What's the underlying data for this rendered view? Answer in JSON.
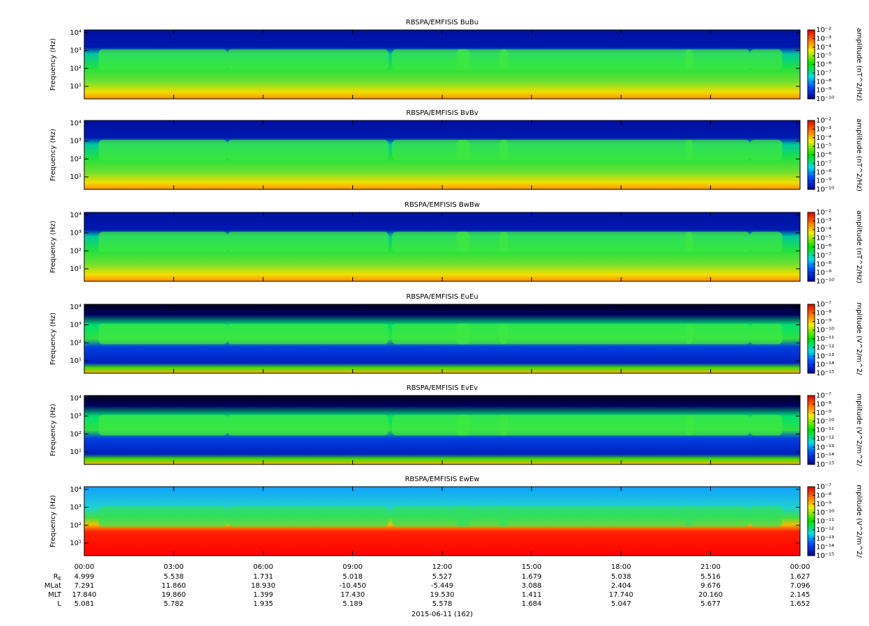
{
  "chart_data": [
    {
      "type": "spectrogram",
      "title": "RBSPA/EMFISIS  BuBu",
      "ylabel": "Frequency (Hz)",
      "log_y": true,
      "ylim": [
        2,
        14000
      ],
      "yticks": [
        {
          "value": 10,
          "label": "10¹"
        },
        {
          "value": 100,
          "label": "10²"
        },
        {
          "value": 1000,
          "label": "10³"
        },
        {
          "value": 10000,
          "label": "10⁴"
        }
      ],
      "colorbar": {
        "label": "amplitude (nT^2/Hz)",
        "lim": [
          1e-10,
          0.01
        ],
        "ticks": [
          {
            "value": 0.01,
            "label": "10⁻²"
          },
          {
            "value": 0.001,
            "label": "10⁻³"
          },
          {
            "value": 0.0001,
            "label": "10⁻⁴"
          },
          {
            "value": 1e-05,
            "label": "10⁻⁵"
          },
          {
            "value": 1e-06,
            "label": "10⁻⁶"
          },
          {
            "value": 1e-07,
            "label": "10⁻⁷"
          },
          {
            "value": 1e-08,
            "label": "10⁻⁸"
          },
          {
            "value": 1e-09,
            "label": "10⁻⁹"
          },
          {
            "value": 1e-10,
            "label": "10⁻¹⁰"
          }
        ]
      }
    },
    {
      "type": "spectrogram",
      "title": "RBSPA/EMFISIS  BvBv",
      "ylabel": "Frequency (Hz)",
      "log_y": true,
      "ylim": [
        2,
        14000
      ],
      "yticks": [
        {
          "value": 10,
          "label": "10¹"
        },
        {
          "value": 100,
          "label": "10²"
        },
        {
          "value": 1000,
          "label": "10³"
        },
        {
          "value": 10000,
          "label": "10⁴"
        }
      ],
      "colorbar": {
        "label": "amplitude (nT^2/Hz)",
        "lim": [
          1e-10,
          0.01
        ],
        "ticks": [
          {
            "value": 0.01,
            "label": "10⁻²"
          },
          {
            "value": 0.001,
            "label": "10⁻³"
          },
          {
            "value": 0.0001,
            "label": "10⁻⁴"
          },
          {
            "value": 1e-05,
            "label": "10⁻⁵"
          },
          {
            "value": 1e-06,
            "label": "10⁻⁶"
          },
          {
            "value": 1e-07,
            "label": "10⁻⁷"
          },
          {
            "value": 1e-08,
            "label": "10⁻⁸"
          },
          {
            "value": 1e-09,
            "label": "10⁻⁹"
          },
          {
            "value": 1e-10,
            "label": "10⁻¹⁰"
          }
        ]
      }
    },
    {
      "type": "spectrogram",
      "title": "RBSPA/EMFISIS  BwBw",
      "ylabel": "Frequency (Hz)",
      "log_y": true,
      "ylim": [
        2,
        14000
      ],
      "yticks": [
        {
          "value": 10,
          "label": "10¹"
        },
        {
          "value": 100,
          "label": "10²"
        },
        {
          "value": 1000,
          "label": "10³"
        },
        {
          "value": 10000,
          "label": "10⁴"
        }
      ],
      "colorbar": {
        "label": "amplitude (nT^2/Hz)",
        "lim": [
          1e-10,
          0.01
        ],
        "ticks": [
          {
            "value": 0.01,
            "label": "10⁻²"
          },
          {
            "value": 0.001,
            "label": "10⁻³"
          },
          {
            "value": 0.0001,
            "label": "10⁻⁴"
          },
          {
            "value": 1e-05,
            "label": "10⁻⁵"
          },
          {
            "value": 1e-06,
            "label": "10⁻⁶"
          },
          {
            "value": 1e-07,
            "label": "10⁻⁷"
          },
          {
            "value": 1e-08,
            "label": "10⁻⁸"
          },
          {
            "value": 1e-09,
            "label": "10⁻⁹"
          },
          {
            "value": 1e-10,
            "label": "10⁻¹⁰"
          }
        ]
      }
    },
    {
      "type": "spectrogram",
      "title": "RBSPA/EMFISIS  EuEu",
      "ylabel": "Frequency (Hz)",
      "log_y": true,
      "ylim": [
        2,
        14000
      ],
      "yticks": [
        {
          "value": 10,
          "label": "10¹"
        },
        {
          "value": 100,
          "label": "10²"
        },
        {
          "value": 1000,
          "label": "10³"
        },
        {
          "value": 10000,
          "label": "10⁴"
        }
      ],
      "colorbar": {
        "label": "mplitude (V^2/m^2/",
        "lim": [
          1e-15,
          1e-07
        ],
        "ticks": [
          {
            "value": 1e-07,
            "label": "10⁻⁷"
          },
          {
            "value": 1e-08,
            "label": "10⁻⁸"
          },
          {
            "value": 1e-09,
            "label": "10⁻⁹"
          },
          {
            "value": 1e-10,
            "label": "10⁻¹⁰"
          },
          {
            "value": 1e-11,
            "label": "10⁻¹¹"
          },
          {
            "value": 1e-12,
            "label": "10⁻¹²"
          },
          {
            "value": 1e-13,
            "label": "10⁻¹³"
          },
          {
            "value": 1e-14,
            "label": "10⁻¹⁴"
          },
          {
            "value": 1e-15,
            "label": "10⁻¹⁵"
          }
        ]
      }
    },
    {
      "type": "spectrogram",
      "title": "RBSPA/EMFISIS  EvEv",
      "ylabel": "Frequency (Hz)",
      "log_y": true,
      "ylim": [
        2,
        14000
      ],
      "yticks": [
        {
          "value": 10,
          "label": "10¹"
        },
        {
          "value": 100,
          "label": "10²"
        },
        {
          "value": 1000,
          "label": "10³"
        },
        {
          "value": 10000,
          "label": "10⁴"
        }
      ],
      "colorbar": {
        "label": "mplitude (V^2/m^2/",
        "lim": [
          1e-15,
          1e-07
        ],
        "ticks": [
          {
            "value": 1e-07,
            "label": "10⁻⁷"
          },
          {
            "value": 1e-08,
            "label": "10⁻⁸"
          },
          {
            "value": 1e-09,
            "label": "10⁻⁹"
          },
          {
            "value": 1e-10,
            "label": "10⁻¹⁰"
          },
          {
            "value": 1e-11,
            "label": "10⁻¹¹"
          },
          {
            "value": 1e-12,
            "label": "10⁻¹²"
          },
          {
            "value": 1e-13,
            "label": "10⁻¹³"
          },
          {
            "value": 1e-14,
            "label": "10⁻¹⁴"
          },
          {
            "value": 1e-15,
            "label": "10⁻¹⁵"
          }
        ]
      }
    },
    {
      "type": "spectrogram",
      "title": "RBSPA/EMFISIS  EwEw",
      "ylabel": "Frequency (Hz)",
      "log_y": true,
      "ylim": [
        2,
        14000
      ],
      "yticks": [
        {
          "value": 10,
          "label": "10¹"
        },
        {
          "value": 100,
          "label": "10²"
        },
        {
          "value": 1000,
          "label": "10³"
        },
        {
          "value": 10000,
          "label": "10⁴"
        }
      ],
      "colorbar": {
        "label": "mplitude (V^2/m^2/",
        "lim": [
          1e-15,
          1e-07
        ],
        "ticks": [
          {
            "value": 1e-07,
            "label": "10⁻⁷"
          },
          {
            "value": 1e-08,
            "label": "10⁻⁸"
          },
          {
            "value": 1e-09,
            "label": "10⁻⁹"
          },
          {
            "value": 1e-10,
            "label": "10⁻¹⁰"
          },
          {
            "value": 1e-11,
            "label": "10⁻¹¹"
          },
          {
            "value": 1e-12,
            "label": "10⁻¹²"
          },
          {
            "value": 1e-13,
            "label": "10⁻¹³"
          },
          {
            "value": 1e-14,
            "label": "10⁻¹⁴"
          },
          {
            "value": 1e-15,
            "label": "10⁻¹⁵"
          }
        ]
      }
    }
  ],
  "x_axis": {
    "xlim": [
      0,
      24
    ],
    "xticks": [
      {
        "value": 0,
        "label": "00:00"
      },
      {
        "value": 3,
        "label": "03:00"
      },
      {
        "value": 6,
        "label": "06:00"
      },
      {
        "value": 9,
        "label": "09:00"
      },
      {
        "value": 12,
        "label": "12:00"
      },
      {
        "value": 15,
        "label": "15:00"
      },
      {
        "value": 18,
        "label": "18:00"
      },
      {
        "value": 21,
        "label": "21:00"
      },
      {
        "value": 24,
        "label": "00:00"
      }
    ],
    "xlabel": "2015-06-11 (162)",
    "ephemeris": [
      {
        "label": "R",
        "subscript": "E",
        "values": [
          "4.999",
          "5.538",
          "1.731",
          "5.018",
          "5.527",
          "1.679",
          "5.038",
          "5.516",
          "1.627"
        ]
      },
      {
        "label": "MLat",
        "values": [
          "7.291",
          "11.860",
          "18.930",
          "-10.450",
          "-5.449",
          "3.088",
          "2.404",
          "9.676",
          "7.096"
        ]
      },
      {
        "label": "MLT",
        "values": [
          "17.840",
          "19.860",
          "1.399",
          "17.430",
          "19.530",
          "1.411",
          "17.740",
          "20.160",
          "2.145"
        ]
      },
      {
        "label": "L",
        "values": [
          "5.081",
          "5.782",
          "1.935",
          "5.189",
          "5.578",
          "1.684",
          "5.047",
          "5.677",
          "1.652"
        ]
      }
    ]
  }
}
